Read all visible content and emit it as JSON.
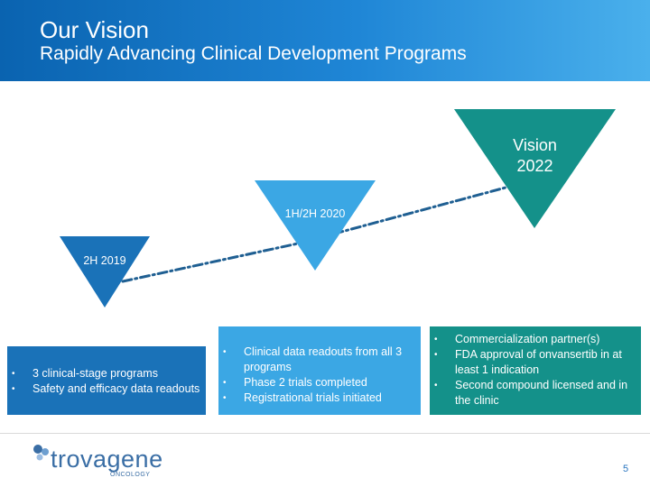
{
  "header": {
    "title": "Our Vision",
    "subtitle": "Rapidly Advancing Clinical Development Programs"
  },
  "milestones": [
    {
      "label": "2H 2019",
      "color": "#1a72b8"
    },
    {
      "label": "1H/2H 2020",
      "color": "#3ba7e4"
    },
    {
      "label_line1": "Vision",
      "label_line2": "2022",
      "color": "#14918a"
    }
  ],
  "boxes": [
    {
      "items": [
        "3 clinical-stage programs",
        "Safety and efficacy data readouts"
      ]
    },
    {
      "items": [
        "Clinical data readouts from all 3 programs",
        "Phase 2 trials completed",
        "Registrational trials initiated"
      ]
    },
    {
      "items": [
        "Commercialization partner(s)",
        "FDA approval of onvansertib in at least 1 indication",
        "Second compound licensed and in the clinic"
      ]
    }
  ],
  "footer": {
    "logo_text": "trovagene",
    "logo_sub": "ONCOLOGY",
    "page_number": "5"
  }
}
